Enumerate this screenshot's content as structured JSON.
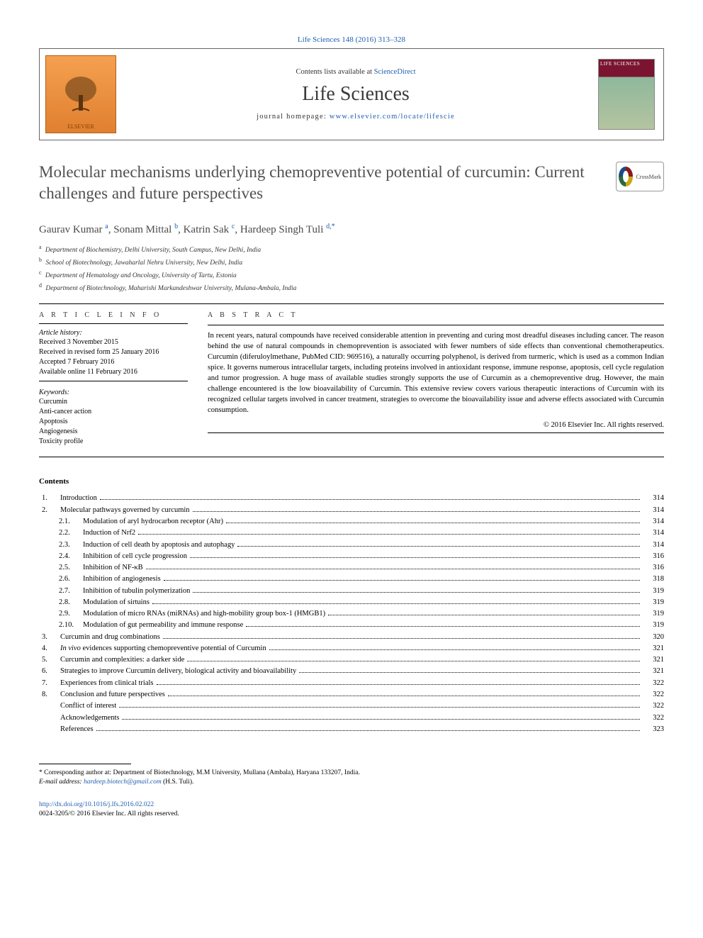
{
  "citation": "Life Sciences 148 (2016) 313–328",
  "header": {
    "contents_prefix": "Contents lists available at ",
    "contents_link": "ScienceDirect",
    "journal": "Life Sciences",
    "homepage_prefix": "journal homepage: ",
    "homepage_url": "www.elsevier.com/locate/lifescie",
    "publisher": "ELSEVIER",
    "cover_text": "LIFE SCIENCES"
  },
  "title": "Molecular mechanisms underlying chemopreventive potential of curcumin: Current challenges and future perspectives",
  "crossmark": "CrossMark",
  "authors": [
    {
      "name": "Gaurav Kumar",
      "aff": "a"
    },
    {
      "name": "Sonam Mittal",
      "aff": "b"
    },
    {
      "name": "Katrin Sak",
      "aff": "c"
    },
    {
      "name": "Hardeep Singh Tuli",
      "aff": "d,*"
    }
  ],
  "affiliations": [
    {
      "tag": "a",
      "text": "Department of Biochemistry, Delhi University, South Campus, New Delhi, India"
    },
    {
      "tag": "b",
      "text": "School of Biotechnology, Jawaharlal Nehru University, New Delhi, India"
    },
    {
      "tag": "c",
      "text": "Department of Hematology and Oncology, University of Tartu, Estonia"
    },
    {
      "tag": "d",
      "text": "Department of Biotechnology, Maharishi Markandeshwar University, Mulana-Ambala, India"
    }
  ],
  "info_head": "A R T I C L E  I N F O",
  "history_label": "Article history:",
  "history": [
    "Received 3 November 2015",
    "Received in revised form 25 January 2016",
    "Accepted 7 February 2016",
    "Available online 11 February 2016"
  ],
  "keywords_label": "Keywords:",
  "keywords": [
    "Curcumin",
    "Anti-cancer action",
    "Apoptosis",
    "Angiogenesis",
    "Toxicity profile"
  ],
  "abs_head": "A B S T R A C T",
  "abstract": "In recent years, natural compounds have received considerable attention in preventing and curing most dreadful diseases including cancer. The reason behind the use of natural compounds in chemoprevention is associated with fewer numbers of side effects than conventional chemotherapeutics. Curcumin (diferuloylmethane, PubMed CID: 969516), a naturally occurring polyphenol, is derived from turmeric, which is used as a common Indian spice. It governs numerous intracellular targets, including proteins involved in antioxidant response, immune response, apoptosis, cell cycle regulation and tumor progression. A huge mass of available studies strongly supports the use of Curcumin as a chemopreventive drug. However, the main challenge encountered is the low bioavailability of Curcumin. This extensive review covers various therapeutic interactions of Curcumin with its recognized cellular targets involved in cancer treatment, strategies to overcome the bioavailability issue and adverse effects associated with Curcumin consumption.",
  "copyright": "© 2016 Elsevier Inc. All rights reserved.",
  "contents_head": "Contents",
  "toc": [
    {
      "num": "1.",
      "label": "Introduction",
      "page": "314",
      "level": 0
    },
    {
      "num": "2.",
      "label": "Molecular pathways governed by curcumin",
      "page": "314",
      "level": 0
    },
    {
      "num": "2.1.",
      "label": "Modulation of aryl hydrocarbon receptor (Ahr)",
      "page": "314",
      "level": 1
    },
    {
      "num": "2.2.",
      "label": "Induction of Nrf2",
      "page": "314",
      "level": 1
    },
    {
      "num": "2.3.",
      "label": "Induction of cell death by apoptosis and autophagy",
      "page": "314",
      "level": 1
    },
    {
      "num": "2.4.",
      "label": "Inhibition of cell cycle progression",
      "page": "316",
      "level": 1
    },
    {
      "num": "2.5.",
      "label": "Inhibition of NF-κB",
      "page": "316",
      "level": 1
    },
    {
      "num": "2.6.",
      "label": "Inhibition of angiogenesis",
      "page": "318",
      "level": 1
    },
    {
      "num": "2.7.",
      "label": "Inhibition of tubulin polymerization",
      "page": "319",
      "level": 1
    },
    {
      "num": "2.8.",
      "label": "Modulation of sirtuins",
      "page": "319",
      "level": 1
    },
    {
      "num": "2.9.",
      "label": "Modulation of micro RNAs (miRNAs) and high-mobility group box-1 (HMGB1)",
      "page": "319",
      "level": 1
    },
    {
      "num": "2.10.",
      "label": "Modulation of gut permeability and immune response",
      "page": "319",
      "level": 1
    },
    {
      "num": "3.",
      "label": "Curcumin and drug combinations",
      "page": "320",
      "level": 0
    },
    {
      "num": "4.",
      "label": "In vivo evidences supporting chemopreventive potential of Curcumin",
      "page": "321",
      "level": 0,
      "italic_prefix": "In vivo"
    },
    {
      "num": "5.",
      "label": "Curcumin and complexities: a darker side",
      "page": "321",
      "level": 0
    },
    {
      "num": "6.",
      "label": "Strategies to improve Curcumin delivery, biological activity and bioavailability",
      "page": "321",
      "level": 0
    },
    {
      "num": "7.",
      "label": "Experiences from clinical trials",
      "page": "322",
      "level": 0
    },
    {
      "num": "8.",
      "label": "Conclusion and future perspectives",
      "page": "322",
      "level": 0
    },
    {
      "num": "",
      "label": "Conflict of interest",
      "page": "322",
      "level": 0
    },
    {
      "num": "",
      "label": "Acknowledgements",
      "page": "322",
      "level": 0
    },
    {
      "num": "",
      "label": "References",
      "page": "323",
      "level": 0
    }
  ],
  "corresponding": {
    "star": "*",
    "text": "Corresponding author at: Department of Biotechnology, M.M University, Mullana (Ambala), Haryana 133207, India.",
    "email_label": "E-mail address:",
    "email": "hardeep.biotech@gmail.com",
    "email_suffix": "(H.S. Tuli)."
  },
  "doi": {
    "url": "http://dx.doi.org/10.1016/j.lfs.2016.02.022",
    "issn_line": "0024-3205/© 2016 Elsevier Inc. All rights reserved."
  },
  "colors": {
    "link": "#2060b0",
    "text": "#000000",
    "title": "#505050",
    "elsevier_bg": "#e89040"
  }
}
